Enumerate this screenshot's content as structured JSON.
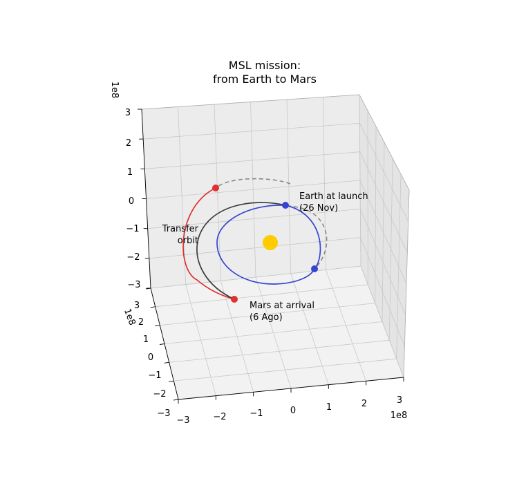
{
  "chart_data": {
    "type": "line",
    "projection": "3d",
    "title": "MSL mission:\nfrom Earth to Mars",
    "title_lines": [
      "MSL mission:",
      "from Earth to Mars"
    ],
    "axes": {
      "x": {
        "lim": [
          -3,
          3
        ],
        "ticks": [
          "−3",
          "−2",
          "−1",
          "0",
          "1",
          "2",
          "3"
        ],
        "offset_text": "1e8"
      },
      "y": {
        "lim": [
          -3,
          3
        ],
        "ticks": [
          "−3",
          "−2",
          "−1",
          "0",
          "1",
          "2",
          "3"
        ],
        "offset_text": "1e8"
      },
      "z": {
        "lim": [
          -3,
          3
        ],
        "ticks": [
          "−3",
          "−2",
          "−1",
          "0",
          "1",
          "2",
          "3"
        ],
        "offset_text": "1e8"
      }
    },
    "grid": true,
    "units_scale": 100000000,
    "series": [
      {
        "role": "earth_orbit",
        "color": "#3545d0",
        "style": "solid",
        "radius": 1.5,
        "theta_range_deg": [
          0,
          360
        ]
      },
      {
        "role": "mars_orbit",
        "color": "#888888",
        "style": "dashed",
        "radius": 2.28,
        "theta_range_deg": [
          -10,
          140
        ]
      },
      {
        "role": "transfer_orbit_front",
        "color": "#3d3d3d",
        "style": "solid"
      },
      {
        "role": "transfer_orbit_back",
        "color": "#e03030",
        "style": "solid"
      }
    ],
    "points": [
      {
        "role": "sun",
        "x": 0,
        "y": 0,
        "z": 0,
        "color": "#ffcc00"
      },
      {
        "role": "earth_launch",
        "x": -0.35,
        "y": 1.46,
        "z": 0.12,
        "color": "#3545d0"
      },
      {
        "role": "earth_other",
        "x": 1.06,
        "y": -1.06,
        "z": -0.05,
        "color": "#3545d0"
      },
      {
        "role": "mars_start",
        "x": -1.56,
        "y": 1.66,
        "z": 0.7,
        "color": "#e03030"
      },
      {
        "role": "mars_arrival",
        "x": -1.55,
        "y": -1.6,
        "z": -0.55,
        "color": "#e03030"
      }
    ],
    "annotations": {
      "earth": [
        "Earth at launch",
        "(26 Nov)"
      ],
      "transfer": [
        "Transfer",
        "orbit"
      ],
      "mars": [
        "Mars at arrival",
        "(6 Ago)"
      ]
    }
  }
}
